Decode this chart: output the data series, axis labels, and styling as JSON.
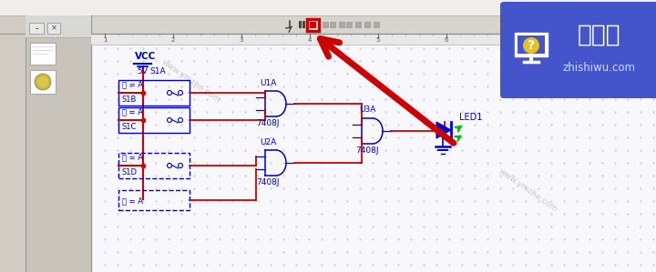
{
  "bg_color": "#e8e8e8",
  "toolbar_bg": "#d8d4cc",
  "ruler_bg": "#e0e0e0",
  "sidebar_bg": "#c8c4bc",
  "canvas_bg": "#f4f4f8",
  "blue": "#0000cc",
  "red": "#cc0000",
  "green": "#00bb00",
  "gray": "#888888",
  "logo_bg": "#4455cc",
  "logo_q_color": "#e8c020",
  "logo_text": "知识屋",
  "logo_sub": "zhishiwu.com",
  "watermark": "www.ymzhe.com",
  "vcc_text": "VCC",
  "v5_text": "5V",
  "s1a_text": "S1A",
  "s1b_label": "键 = A",
  "s1b_text": "S1B",
  "s1c_label": "键 = A",
  "s1c_text": "S1C",
  "s1d_label": "键 = A",
  "s1d_text": "S1D",
  "keya_text": "键 = A",
  "u1a_text": "U1A",
  "u2a_text": "U2A",
  "u3a_text": "U3A",
  "gate1_text": "7408J",
  "gate2_text": "7408J",
  "gate3_text": "7408J",
  "led_text": "LED1",
  "figsize": [
    7.2,
    2.99
  ],
  "dpi": 100
}
